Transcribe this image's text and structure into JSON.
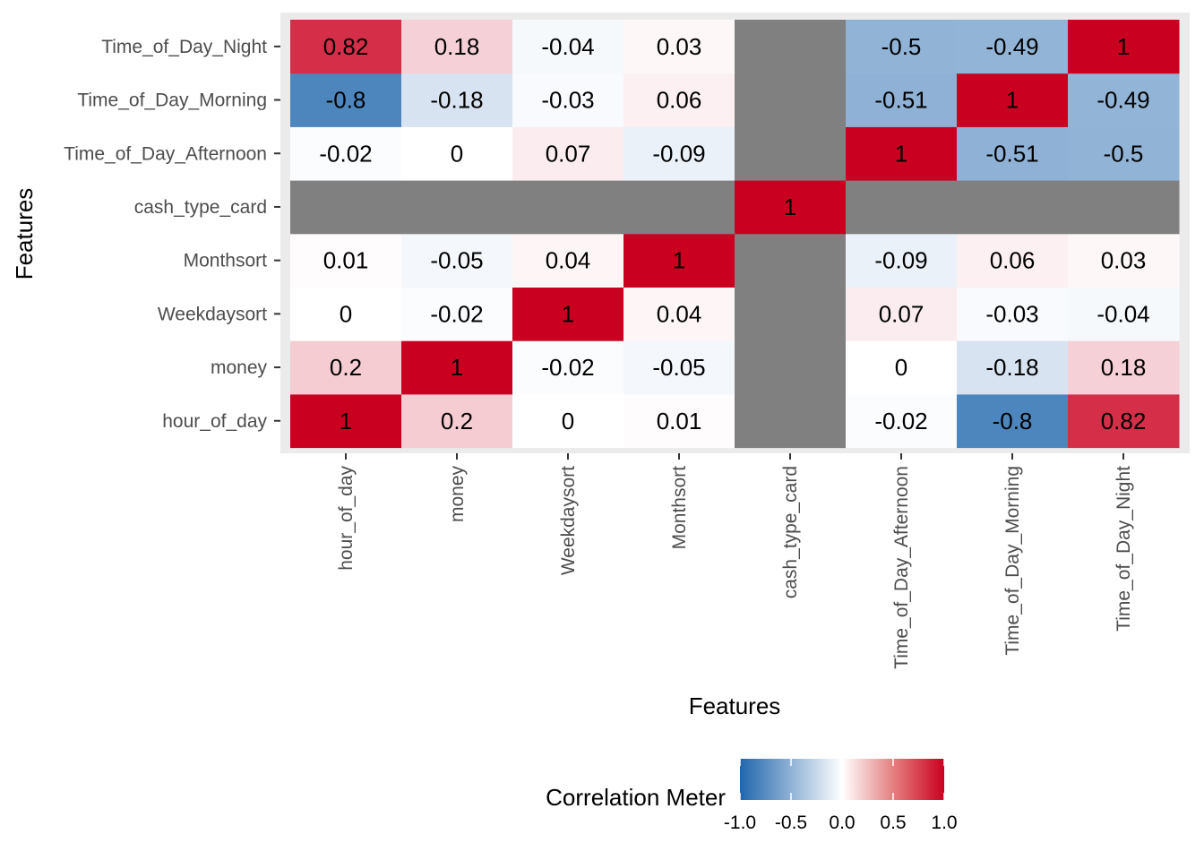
{
  "chart_data": {
    "type": "heatmap",
    "title": "",
    "xlabel": "Features",
    "ylabel": "Features",
    "x_categories": [
      "hour_of_day",
      "money",
      "Weekdaysort",
      "Monthsort",
      "cash_type_card",
      "Time_of_Day_Afternoon",
      "Time_of_Day_Morning",
      "Time_of_Day_Night"
    ],
    "y_categories": [
      "hour_of_day",
      "money",
      "Weekdaysort",
      "Monthsort",
      "cash_type_card",
      "Time_of_Day_Afternoon",
      "Time_of_Day_Morning",
      "Time_of_Day_Night"
    ],
    "y_order_note": "y_categories listed bottom to top",
    "matrix": [
      [
        1,
        0.2,
        0,
        0.01,
        null,
        -0.02,
        -0.8,
        0.82
      ],
      [
        0.2,
        1,
        -0.02,
        -0.05,
        null,
        0,
        -0.18,
        0.18
      ],
      [
        0,
        -0.02,
        1,
        0.04,
        null,
        0.07,
        -0.03,
        -0.04
      ],
      [
        0.01,
        -0.05,
        0.04,
        1,
        null,
        -0.09,
        0.06,
        0.03
      ],
      [
        null,
        null,
        null,
        null,
        1,
        null,
        null,
        null
      ],
      [
        -0.02,
        0,
        0.07,
        -0.09,
        null,
        1,
        -0.51,
        -0.5
      ],
      [
        -0.8,
        -0.18,
        -0.03,
        0.06,
        null,
        -0.51,
        1,
        -0.49
      ],
      [
        0.82,
        0.18,
        -0.04,
        0.03,
        null,
        -0.5,
        -0.49,
        1
      ]
    ],
    "na_color": "#808080",
    "color_scale": {
      "low": "#2166AC",
      "mid": "#FFFFFF",
      "high": "#CA0020",
      "limits": [
        -1,
        1
      ]
    },
    "legend": {
      "title": "Correlation Meter",
      "position": "bottom",
      "ticks": [
        -1.0,
        -0.5,
        0.0,
        0.5,
        1.0
      ],
      "tick_labels": [
        "-1.0",
        "-0.5",
        "0.0",
        "0.5",
        "1.0"
      ]
    },
    "panel_background": "#EBEBEB",
    "grid": false
  }
}
